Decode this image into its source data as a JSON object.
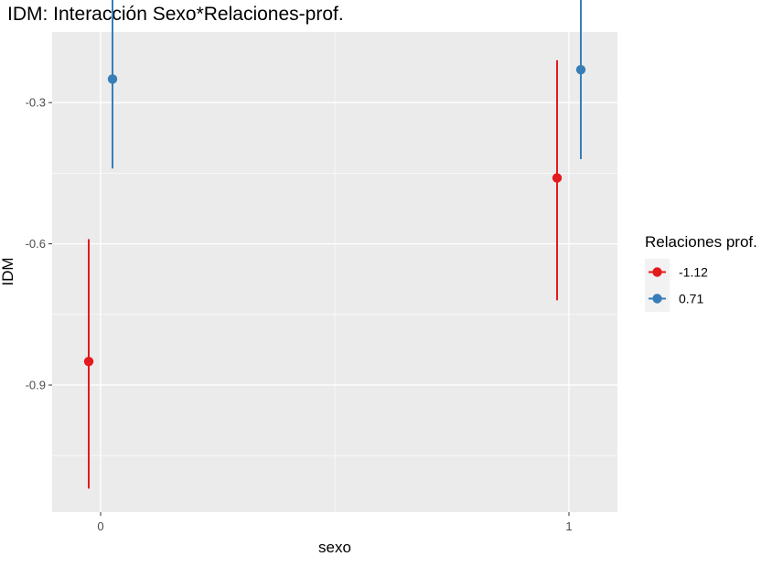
{
  "chart_data": {
    "type": "scatter",
    "title": "IDM: Interacción Sexo*Relaciones-prof.",
    "xlabel": "sexo",
    "ylabel": "IDM",
    "categories": [
      "0",
      "1"
    ],
    "yticks": [
      "-0.3",
      "-0.6",
      "-0.9"
    ],
    "ytick_values": [
      -0.3,
      -0.6,
      -0.9
    ],
    "ylim": [
      -1.17,
      -0.15
    ],
    "grid": true,
    "legend": {
      "title": "Relaciones prof.",
      "position": "right"
    },
    "series": [
      {
        "name": "-1.12",
        "color": "#E41A1C",
        "points": [
          {
            "x": "0",
            "y": -0.85,
            "lower": -1.12,
            "upper": -0.59
          },
          {
            "x": "1",
            "y": -0.46,
            "lower": -0.72,
            "upper": -0.21
          }
        ]
      },
      {
        "name": "0.71",
        "color": "#377EB8",
        "points": [
          {
            "x": "0",
            "y": -0.25,
            "lower": -0.44,
            "upper": -0.06
          },
          {
            "x": "1",
            "y": -0.23,
            "lower": -0.42,
            "upper": -0.06
          }
        ]
      }
    ]
  }
}
